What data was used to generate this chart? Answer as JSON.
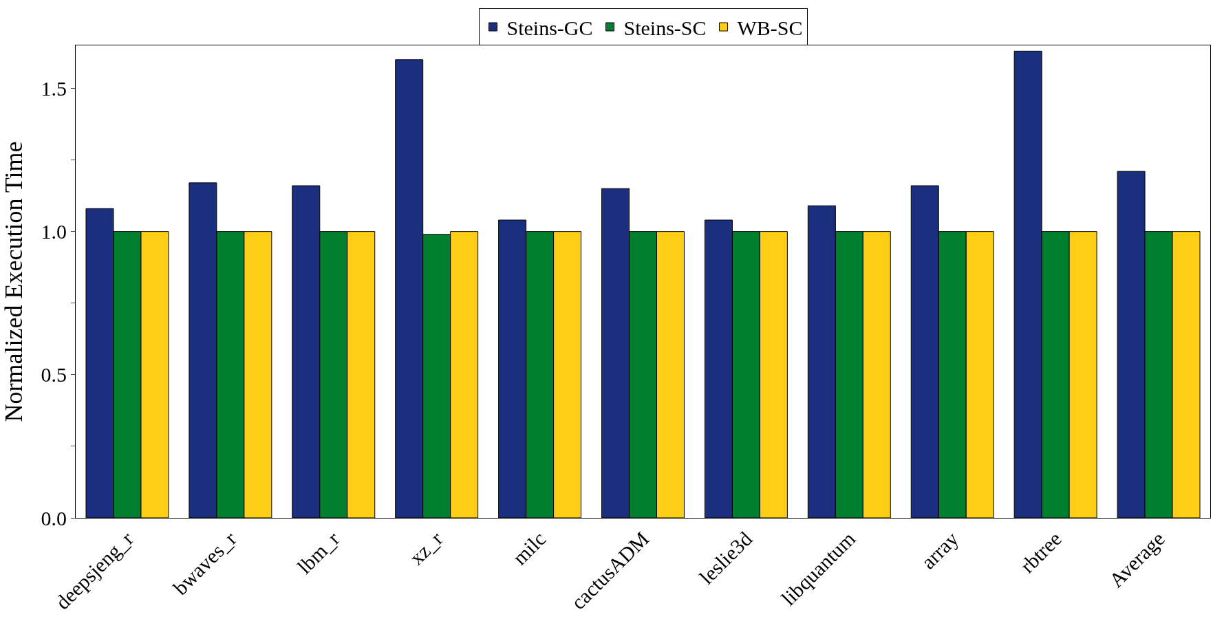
{
  "chart_data": {
    "type": "bar",
    "ylabel": "Normalized Execution Time",
    "categories": [
      "deepsjeng_r",
      "bwaves_r",
      "lbm_r",
      "xz_r",
      "milc",
      "cactusADM",
      "leslie3d",
      "libquantum",
      "array",
      "rbtree",
      "Average"
    ],
    "series": [
      {
        "name": "Steins-GC",
        "color": "#1a307e",
        "values": [
          1.08,
          1.17,
          1.16,
          1.6,
          1.04,
          1.15,
          1.04,
          1.09,
          1.16,
          1.63,
          1.21
        ]
      },
      {
        "name": "Steins-SC",
        "color": "#007f2f",
        "values": [
          1.0,
          1.0,
          1.0,
          0.99,
          1.0,
          1.0,
          1.0,
          1.0,
          1.0,
          1.0,
          1.0
        ]
      },
      {
        "name": "WB-SC",
        "color": "#fecd15",
        "values": [
          1.0,
          1.0,
          1.0,
          1.0,
          1.0,
          1.0,
          1.0,
          1.0,
          1.0,
          1.0,
          1.0
        ]
      }
    ],
    "ylim": [
      0,
      1.65
    ],
    "yticks": [
      {
        "value": 0,
        "label": "0.0"
      },
      {
        "value": 0.25,
        "label": null
      },
      {
        "value": 0.5,
        "label": "0.5"
      },
      {
        "value": 0.75,
        "label": null
      },
      {
        "value": 1,
        "label": "1.0"
      },
      {
        "value": 1.25,
        "label": null
      },
      {
        "value": 1.5,
        "label": "1.5"
      }
    ],
    "legend": "top"
  }
}
